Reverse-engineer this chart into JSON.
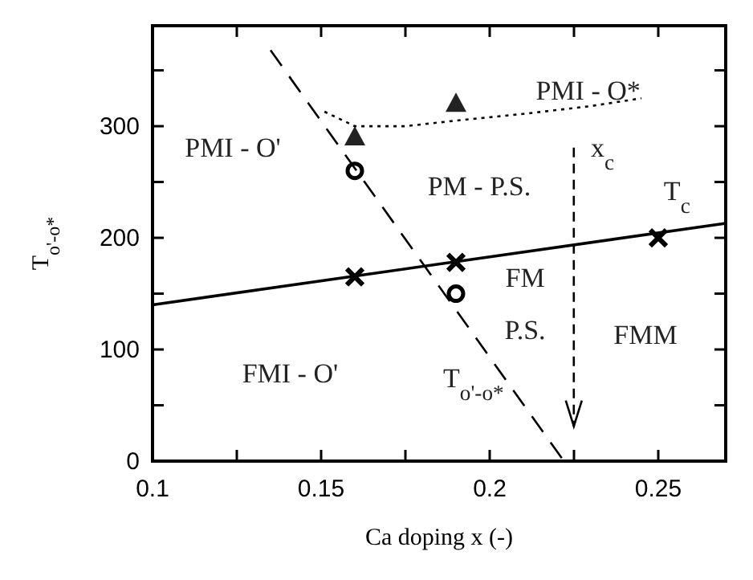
{
  "chart_data": {
    "type": "scatter",
    "xlabel": "Ca doping x (-)",
    "ylabel": "T$_{o'-o*}$",
    "xlim": [
      0.1,
      0.27
    ],
    "xticks": [
      0.1,
      {
        "value": 0.125,
        "label": null
      },
      0.15,
      {
        "value": 0.175,
        "label": null
      },
      0.2,
      {
        "value": 0.225,
        "label": null
      },
      0.25
    ],
    "ylim": [
      0,
      390
    ],
    "yticks": [
      0,
      {
        "value": 50,
        "label": null
      },
      100,
      {
        "value": 150,
        "label": null
      },
      200,
      {
        "value": 250,
        "label": null
      },
      300,
      {
        "value": 350,
        "label": null
      }
    ],
    "grid": false,
    "series": [
      {
        "type": "line",
        "color": "#000000",
        "x": [
          0.1,
          0.27
        ],
        "values": [
          140,
          213
        ],
        "marker": "none",
        "line_style": "solid"
      },
      {
        "type": "line",
        "color": "#000000",
        "x": [
          0.151,
          0.16,
          0.175,
          0.19,
          0.21,
          0.23,
          0.245
        ],
        "values": [
          313,
          300,
          300,
          305,
          311,
          318,
          325
        ],
        "marker": "none",
        "line_style": "dotted"
      },
      {
        "type": "line",
        "color": "#000000",
        "x": [
          0.135,
          0.222
        ],
        "values": [
          368,
          0
        ],
        "marker": "none",
        "line_style": "dashed"
      },
      {
        "color": "#000000",
        "x": [
          0.16,
          0.19,
          0.25
        ],
        "values": [
          165,
          178,
          200
        ],
        "marker": "cross"
      },
      {
        "color": "#222222",
        "x": [
          0.16,
          0.19
        ],
        "values": [
          290,
          320
        ],
        "marker": "triangle"
      },
      {
        "color": "#000000",
        "x": [
          0.16,
          0.19
        ],
        "values": [
          260,
          150
        ],
        "marker": "circle"
      }
    ],
    "annotations": [
      "PMI - O*",
      "PMI - O'",
      "PM - P.S.",
      "FM",
      "P.S.",
      "FMM",
      "FMI - O'",
      "T$_{o'-o*}$",
      "x$_{c}$",
      "T$_{c}$"
    ]
  }
}
